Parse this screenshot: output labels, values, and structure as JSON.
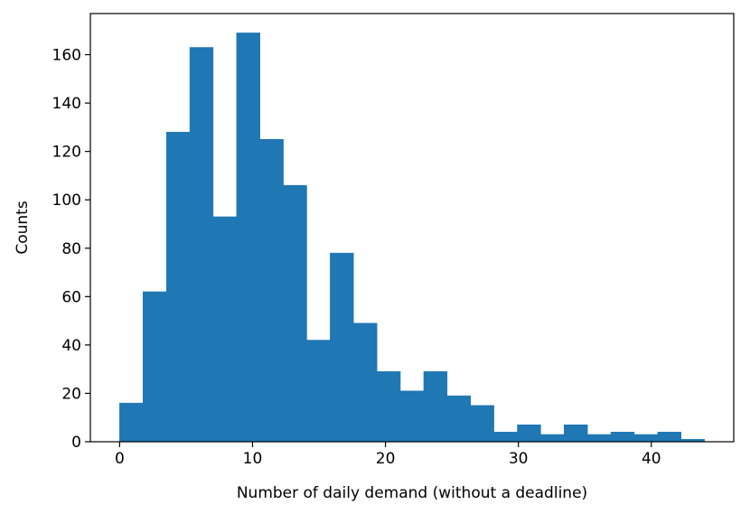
{
  "chart_data": {
    "type": "bar",
    "title": "",
    "xlabel": "Number of daily demand (without a deadline)",
    "ylabel": "Counts",
    "xlim": [
      -2.2,
      46.2
    ],
    "ylim": [
      0,
      177
    ],
    "bin_start": 0,
    "bin_width": 1.76,
    "values": [
      16,
      62,
      128,
      163,
      93,
      169,
      125,
      106,
      42,
      78,
      49,
      29,
      21,
      29,
      19,
      15,
      4,
      7,
      3,
      7,
      3,
      4,
      3,
      4,
      1
    ],
    "x_ticks": [
      0,
      10,
      20,
      30,
      40
    ],
    "x_tick_labels": [
      "0",
      "10",
      "20",
      "30",
      "40"
    ],
    "y_ticks": [
      0,
      20,
      40,
      60,
      80,
      100,
      120,
      140,
      160
    ],
    "y_tick_labels": [
      "0",
      "20",
      "40",
      "60",
      "80",
      "100",
      "120",
      "140",
      "160"
    ],
    "bar_color": "#1f77b4",
    "grid": false,
    "legend": "none"
  }
}
